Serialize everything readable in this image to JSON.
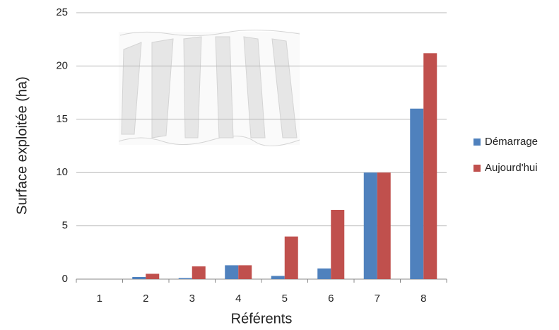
{
  "chart_data": {
    "type": "bar",
    "x_label": "Référents",
    "y_label": "Surface exploitée (ha)",
    "categories": [
      "1",
      "2",
      "3",
      "4",
      "5",
      "6",
      "7",
      "8"
    ],
    "series": [
      {
        "name": "Démarrage",
        "color": "#4f81bd",
        "values": [
          0,
          0.2,
          0.1,
          1.3,
          0.3,
          1.0,
          10,
          16
        ]
      },
      {
        "name": "Aujourd'hui",
        "color": "#c0504d",
        "values": [
          0,
          0.5,
          1.2,
          1.3,
          4.0,
          6.5,
          10,
          21.2
        ]
      }
    ],
    "ylim": [
      0,
      25
    ],
    "yticks": [
      0,
      5,
      10,
      15,
      20,
      25
    ],
    "grid": true,
    "legend": "right"
  }
}
